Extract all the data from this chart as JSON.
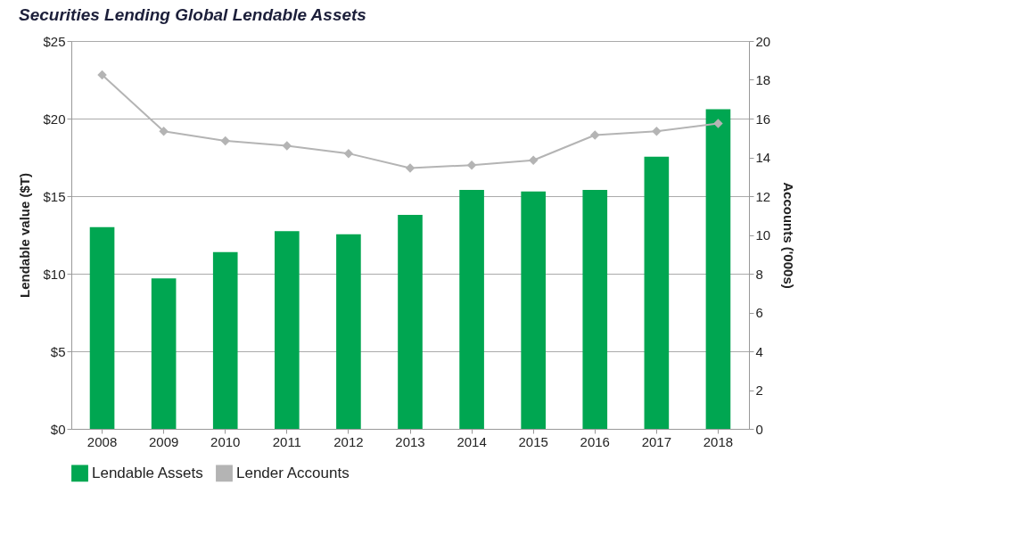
{
  "chart_data": {
    "type": "bar",
    "title": "Securities Lending Global Lendable Assets",
    "xlabel": null,
    "ylabel": "Lendable value ($T)",
    "y2label": "Accounts ('000s)",
    "categories": [
      "2008",
      "2009",
      "2010",
      "2011",
      "2012",
      "2013",
      "2014",
      "2015",
      "2016",
      "2017",
      "2018"
    ],
    "series": [
      {
        "name": "Lendable Assets",
        "color": "#00a651",
        "values": [
          13.0,
          9.7,
          11.4,
          12.75,
          12.55,
          13.8,
          15.4,
          15.3,
          15.4,
          17.55,
          20.6
        ]
      },
      {
        "name": "Lender Accounts",
        "type": "line",
        "axis": "y2",
        "color": "#b4b4b4",
        "marker": "diamond",
        "line_style": "solid",
        "values": [
          18.25,
          15.35,
          14.85,
          14.6,
          14.2,
          13.45,
          13.6,
          13.85,
          15.15,
          15.35,
          15.75
        ]
      }
    ],
    "ylim": [
      0,
      25
    ],
    "yticks": [
      {
        "value": 0,
        "label": "$0"
      },
      {
        "value": 5,
        "label": "$5"
      },
      {
        "value": 10,
        "label": "$10"
      },
      {
        "value": 15,
        "label": "$15"
      },
      {
        "value": 20,
        "label": "$20"
      },
      {
        "value": 25,
        "label": "$25"
      }
    ],
    "y2lim": [
      0,
      20
    ],
    "y2ticks": [
      0,
      2,
      4,
      6,
      8,
      10,
      12,
      14,
      16,
      18,
      20
    ],
    "grid": "y",
    "legend": "bottom"
  }
}
